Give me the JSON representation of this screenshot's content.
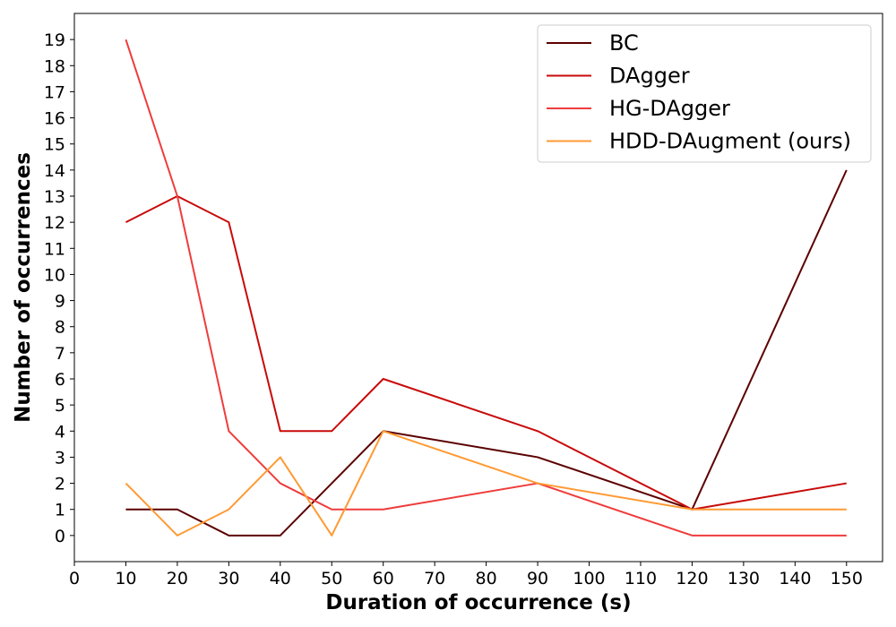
{
  "chart_data": {
    "type": "line",
    "title": "",
    "xlabel": "Duration of occurrence (s)",
    "ylabel": "Number of occurrences",
    "x": [
      10,
      20,
      30,
      40,
      50,
      60,
      90,
      120,
      150
    ],
    "xlim": [
      0,
      157
    ],
    "ylim": [
      -1,
      20
    ],
    "xticks": [
      0,
      10,
      20,
      30,
      40,
      50,
      60,
      70,
      80,
      90,
      100,
      110,
      120,
      130,
      140,
      150
    ],
    "yticks": [
      0,
      1,
      2,
      3,
      4,
      5,
      6,
      7,
      8,
      9,
      10,
      11,
      12,
      13,
      14,
      15,
      16,
      17,
      18,
      19
    ],
    "grid": false,
    "legend_position": "top-right",
    "series": [
      {
        "name": "BC",
        "color": "#5c0000",
        "values": [
          1,
          1,
          0,
          0,
          2,
          4,
          3,
          1,
          14
        ]
      },
      {
        "name": "DAgger",
        "color": "#c80a0a",
        "values": [
          12,
          13,
          12,
          4,
          4,
          6,
          4,
          1,
          2
        ]
      },
      {
        "name": "HG-DAgger",
        "color": "#ef3c3c",
        "values": [
          19,
          13,
          4,
          2,
          1,
          1,
          2,
          0,
          0
        ]
      },
      {
        "name": "HDD-DAugment (ours)",
        "color": "#ff9a33",
        "values": [
          2,
          0,
          1,
          3,
          0,
          4,
          2,
          1,
          1
        ]
      }
    ]
  }
}
